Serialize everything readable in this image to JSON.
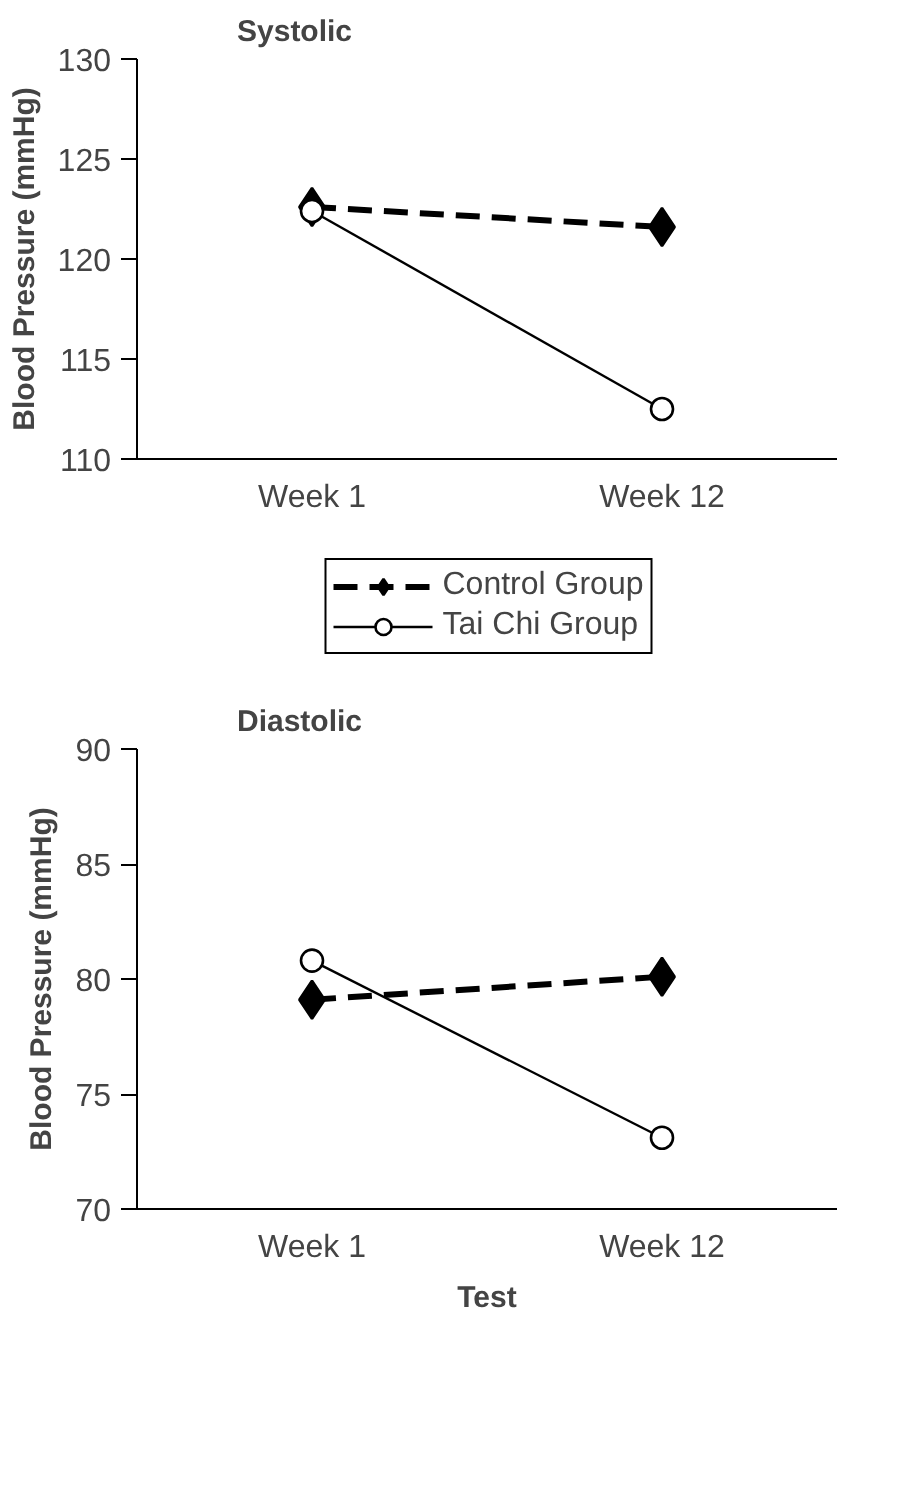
{
  "chart_data": [
    {
      "type": "line",
      "title": "Systolic",
      "ylabel": "Blood Pressure (mmHg)",
      "categories": [
        "Week 1",
        "Week 12"
      ],
      "ylim": [
        110,
        130
      ],
      "yticks": [
        110,
        115,
        120,
        125,
        130
      ],
      "legend": "bottom",
      "grid": false,
      "series": [
        {
          "name": "Control Group",
          "color": "#000000",
          "values": [
            122.6,
            121.6
          ],
          "marker": "diamond",
          "line_style": "dashed"
        },
        {
          "name": "Tai Chi Group",
          "color": "#000000",
          "values": [
            122.4,
            112.5
          ],
          "marker": "circle",
          "line_style": "solid"
        }
      ]
    },
    {
      "type": "line",
      "title": "Diastolic",
      "ylabel": "Blood Pressure (mmHg)",
      "xlabel": "Test",
      "categories": [
        "Week 1",
        "Week 12"
      ],
      "ylim": [
        70,
        90
      ],
      "yticks": [
        70,
        75,
        80,
        85,
        90
      ],
      "grid": false,
      "series": [
        {
          "color": "#000000",
          "values": [
            79.1,
            80.1
          ],
          "marker": "diamond",
          "line_style": "dashed"
        },
        {
          "color": "#000000",
          "values": [
            80.8,
            73.1
          ],
          "marker": "circle",
          "line_style": "solid"
        }
      ]
    }
  ]
}
